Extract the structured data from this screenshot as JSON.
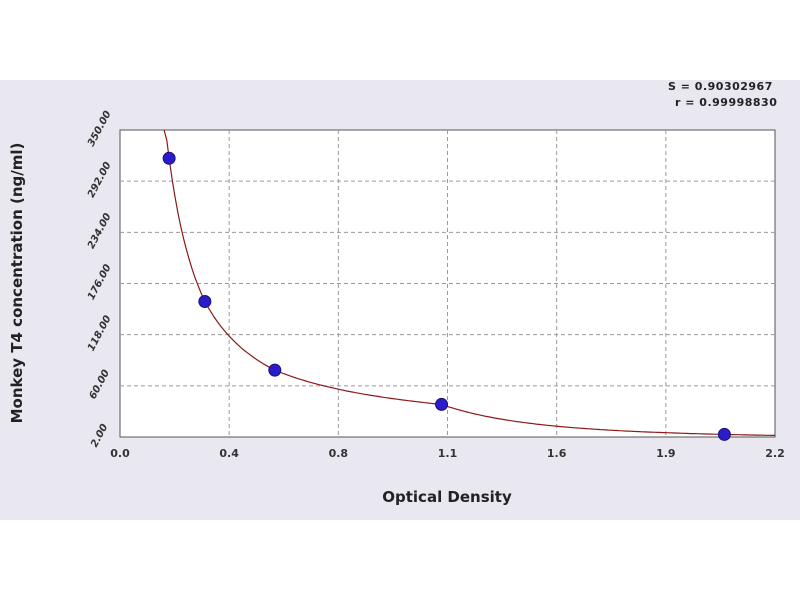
{
  "stats": {
    "s_line": "S = 0.90302967",
    "r_line": "r = 0.99998830"
  },
  "chart_data": {
    "type": "scatter",
    "xlabel": "Optical Density",
    "ylabel": "Monkey T4 concentration (ng/ml)",
    "xlim": [
      0.0,
      2.2
    ],
    "ylim": [
      2.0,
      360.0
    ],
    "x_ticks": [
      "0.0",
      "0.4",
      "0.8",
      "1.1",
      "1.6",
      "1.9",
      "2.2"
    ],
    "y_ticks": [
      "2.00",
      "60.00",
      "118.00",
      "176.00",
      "234.00",
      "292.00",
      "350.00"
    ],
    "grid": true,
    "series": [
      {
        "color": "#2a1dc9",
        "x": [
          0.165,
          0.285,
          0.52,
          1.08,
          2.03
        ],
        "y": [
          327,
          160,
          80,
          40,
          5
        ]
      }
    ],
    "fit_curve": {
      "color": "#8b1a1a"
    }
  }
}
